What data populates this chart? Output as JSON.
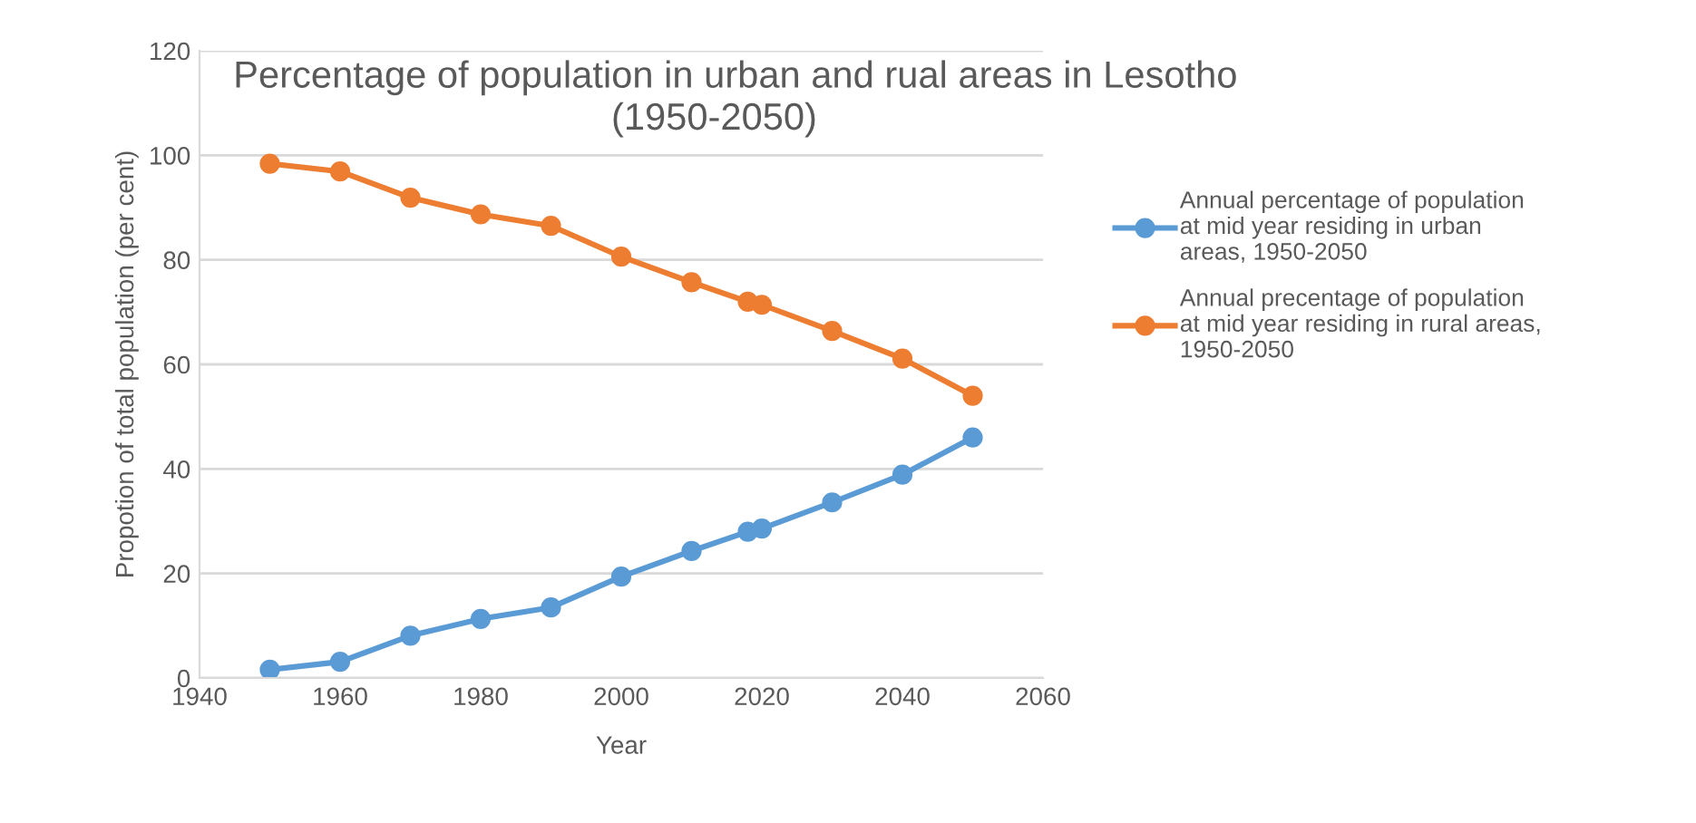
{
  "chart_data": {
    "type": "line",
    "title": "Percentage of population in urban and rual areas in Lesotho\n                                    (1950-2050)",
    "xlabel": "Year",
    "ylabel": "Propotion of total population (per cent)",
    "x": [
      1950,
      1960,
      1970,
      1980,
      1990,
      2000,
      2010,
      2018,
      2020,
      2030,
      2040,
      2050
    ],
    "series": [
      {
        "name": "Annual percentage of population\nat mid year residing in urban\nareas, 1950-2050",
        "color": "#5b9bd5",
        "values": [
          1.6,
          3.1,
          8.1,
          11.3,
          13.5,
          19.4,
          24.3,
          28.0,
          28.6,
          33.6,
          38.9,
          46.0
        ]
      },
      {
        "name": "Annual precentage of population\nat mid year residing in rural areas,\n1950-2050",
        "color": "#ed7d31",
        "values": [
          98.4,
          96.9,
          91.9,
          88.7,
          86.5,
          80.6,
          75.7,
          72.0,
          71.4,
          66.4,
          61.1,
          54.0
        ]
      }
    ],
    "xlim": [
      1940,
      2060
    ],
    "xticks": [
      1940,
      1960,
      1980,
      2000,
      2020,
      2040,
      2060
    ],
    "ylim": [
      0,
      120
    ],
    "yticks": [
      0,
      20,
      40,
      60,
      80,
      100,
      120
    ],
    "grid": "y",
    "legend": "right",
    "marker": "circle",
    "line_style": "solid"
  }
}
